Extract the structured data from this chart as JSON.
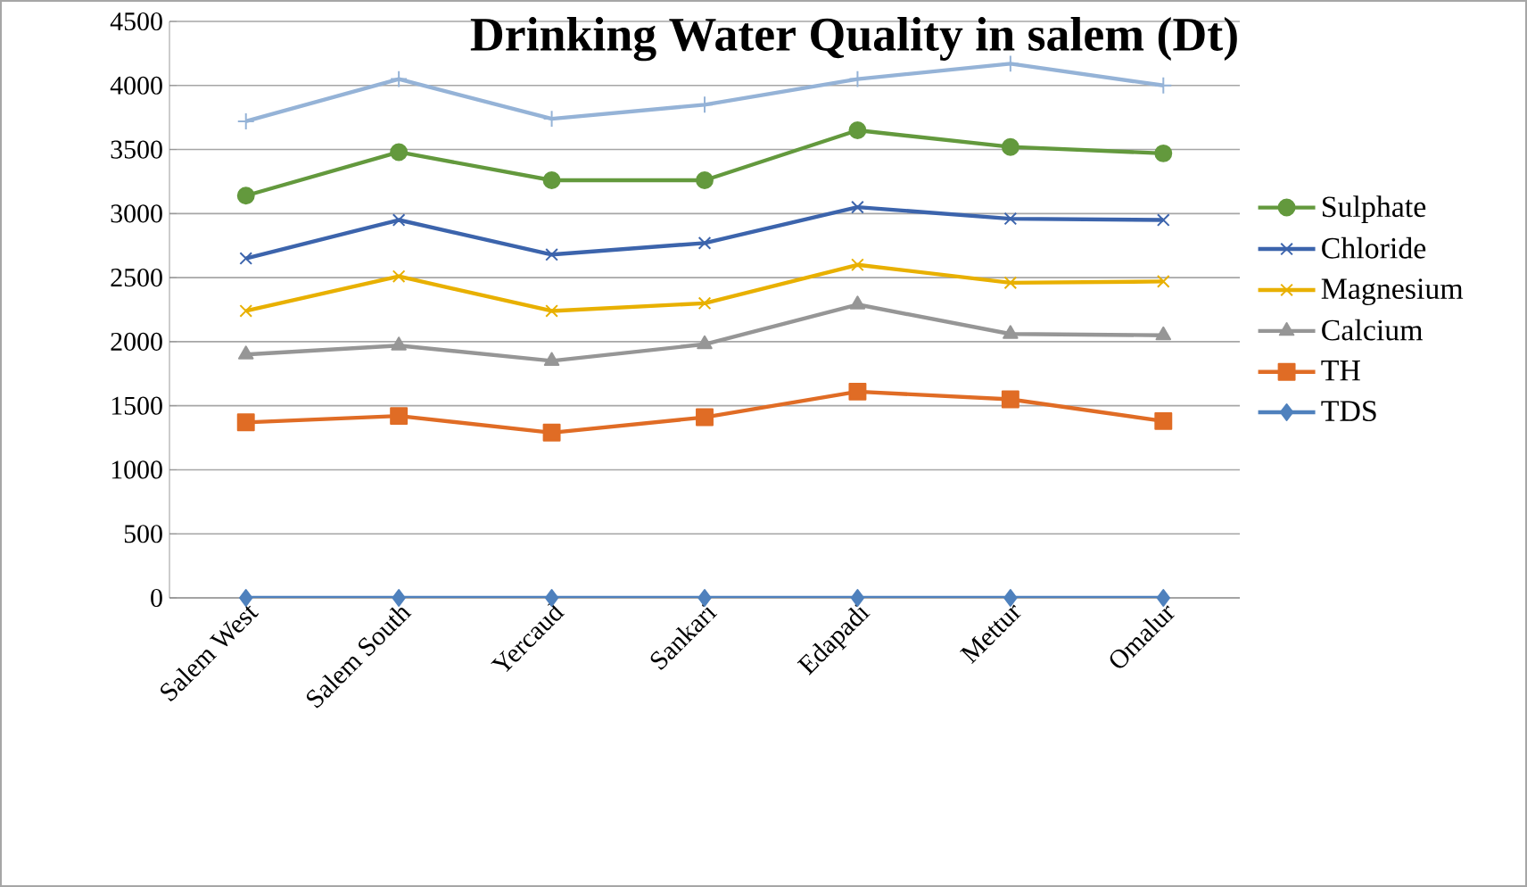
{
  "chart_data": {
    "type": "line",
    "title": "Drinking Water Quality in salem (Dt)",
    "categories": [
      "Salem West",
      "Salem South",
      "Yercaud",
      "Sankari",
      "Edapadi",
      "Mettur",
      "Omalur"
    ],
    "series": [
      {
        "name": "TDS",
        "color": "#4f81bd",
        "marker": "diamond",
        "values": [
          0,
          0,
          0,
          0,
          0,
          0,
          0
        ]
      },
      {
        "name": "TH",
        "color": "#e06c25",
        "marker": "square",
        "values": [
          1370,
          1420,
          1290,
          1410,
          1610,
          1550,
          1380
        ]
      },
      {
        "name": "Calcium",
        "color": "#969696",
        "marker": "triangle",
        "values": [
          1900,
          1970,
          1850,
          1980,
          2290,
          2060,
          2050
        ]
      },
      {
        "name": "Magnesium",
        "color": "#e8b000",
        "marker": "cross",
        "values": [
          2240,
          2510,
          2240,
          2300,
          2600,
          2460,
          2470
        ]
      },
      {
        "name": "Chloride",
        "color": "#3c64ac",
        "marker": "cross",
        "values": [
          2650,
          2950,
          2680,
          2770,
          3050,
          2960,
          2950
        ]
      },
      {
        "name": "Sulphate",
        "color": "#63993d",
        "marker": "circle",
        "values": [
          3140,
          3480,
          3260,
          3260,
          3650,
          3520,
          3470
        ]
      },
      {
        "color": "#95b3d7",
        "marker": "plus",
        "values": [
          3720,
          4050,
          3740,
          3850,
          4050,
          4170,
          4000
        ]
      }
    ],
    "ylim": [
      0,
      4500
    ],
    "yticks": [
      0,
      500,
      1000,
      1500,
      2000,
      2500,
      3000,
      3500,
      4000,
      4500
    ],
    "grid": "y",
    "legend": "right"
  }
}
